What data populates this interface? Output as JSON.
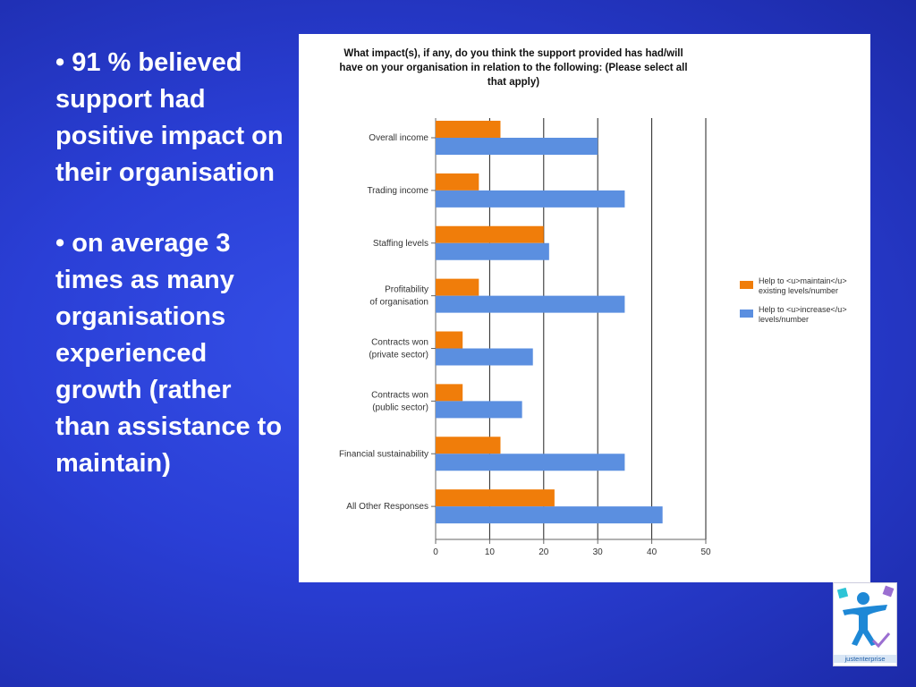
{
  "slide": {
    "bullets": [
      "• 91 % believed support had positive impact on their organisation",
      "• on average  3 times as many organisations experienced growth (rather than assistance to maintain)"
    ],
    "logo_text": "justenterprise"
  },
  "colors": {
    "maintain": "#f07d0a",
    "increase": "#5b8fe0",
    "slide_bg": "#2a3fd6"
  },
  "chart_data": {
    "type": "bar",
    "orientation": "horizontal",
    "title": "What impact(s), if any, do you think the support provided has had/will have on your organisation in relation to the following: (Please select all that apply)",
    "categories": [
      [
        "Overall income"
      ],
      [
        "Trading income"
      ],
      [
        "Staffing levels"
      ],
      [
        "Profitability",
        "of organisation"
      ],
      [
        "Contracts won",
        "(private sector)"
      ],
      [
        "Contracts won",
        "(public sector)"
      ],
      [
        "Financial sustainability"
      ],
      [
        "All Other Responses"
      ]
    ],
    "series": [
      {
        "name": "Help to <u>maintain</u> existing levels/number",
        "legend_lines": [
          "Help to <u>maintain</u>",
          "existing levels/number"
        ],
        "color": "#f07d0a",
        "values": [
          12,
          8,
          20,
          8,
          5,
          5,
          12,
          22
        ]
      },
      {
        "name": "Help to <u>increase</u> levels/number",
        "legend_lines": [
          "Help to <u>increase</u>",
          "levels/number"
        ],
        "color": "#5b8fe0",
        "values": [
          30,
          35,
          21,
          35,
          18,
          16,
          35,
          42
        ]
      }
    ],
    "xlim": [
      0,
      50
    ],
    "xticks": [
      0,
      10,
      20,
      30,
      40,
      50
    ],
    "grid": true,
    "legend_position": "right"
  }
}
